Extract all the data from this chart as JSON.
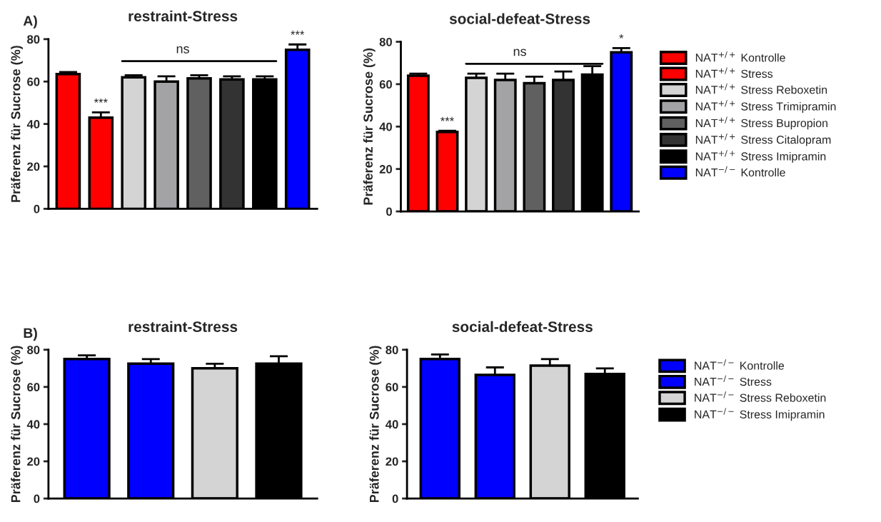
{
  "chart_data": [
    {
      "type": "bar",
      "title": "restraint-Stress",
      "ylabel": "Präferenz für Sucrose (%)",
      "annotations": [
        "A)",
        "ns"
      ],
      "categories": [
        null,
        null,
        null,
        null,
        null,
        null,
        null,
        null
      ],
      "values": [
        63.5,
        43,
        62,
        60,
        61.5,
        61,
        61,
        75
      ],
      "errors": [
        1,
        2.5,
        1,
        2.5,
        1.5,
        1.5,
        1.5,
        2.5
      ],
      "value_labels": [
        null,
        "***",
        null,
        null,
        null,
        null,
        null,
        "***"
      ],
      "colors": [
        "#ff0000",
        "#ff0000",
        "#d4d4d4",
        "#a3a3a6",
        "#606060",
        "#333333",
        "#000000",
        "#0000ff"
      ],
      "ylim": [
        0,
        80
      ],
      "yticks": [
        0,
        20,
        40,
        60,
        80
      ],
      "grid": false,
      "legend": false
    },
    {
      "type": "bar",
      "title": "social-defeat-Stress",
      "ylabel": "Präferenz für Sucrose (%)",
      "annotations": [
        "ns"
      ],
      "categories": [
        null,
        null,
        null,
        null,
        null,
        null,
        null,
        null
      ],
      "series": [
        {
          "name": "NAT$^{+/+}$ Kontrolle",
          "color": "#ff0000",
          "values": [
            64,
            null,
            null,
            null,
            null,
            null,
            null,
            null
          ],
          "errors": [
            1,
            null,
            null,
            null,
            null,
            null,
            null,
            null
          ]
        },
        {
          "name": "NAT$^{+/+}$ Stress",
          "color": "#ff0000",
          "values": [
            null,
            37.5,
            null,
            null,
            null,
            null,
            null,
            null
          ],
          "errors": [
            null,
            0.5,
            null,
            null,
            null,
            null,
            null,
            null
          ],
          "value_labels": [
            null,
            "***",
            null,
            null,
            null,
            null,
            null,
            null
          ]
        },
        {
          "name": "NAT$^{+/+}$ Stress Reboxetin",
          "color": "#d4d4d4",
          "values": [
            null,
            null,
            63,
            null,
            null,
            null,
            null,
            null
          ],
          "errors": [
            null,
            null,
            2,
            null,
            null,
            null,
            null,
            null
          ]
        },
        {
          "name": "NAT$^{+/+}$ Stress Trimipramin",
          "color": "#a3a3a6",
          "values": [
            null,
            null,
            null,
            62,
            null,
            null,
            null,
            null
          ],
          "errors": [
            null,
            null,
            null,
            3,
            null,
            null,
            null,
            null
          ]
        },
        {
          "name": "NAT$^{+/+}$ Stress Bupropion",
          "color": "#606060",
          "values": [
            null,
            null,
            null,
            null,
            60.5,
            null,
            null,
            null
          ],
          "errors": [
            null,
            null,
            null,
            null,
            3,
            null,
            null,
            null
          ]
        },
        {
          "name": "NAT$^{+/+}$ Stress Citalopram",
          "color": "#333333",
          "values": [
            null,
            null,
            null,
            null,
            null,
            62,
            null,
            null
          ],
          "errors": [
            null,
            null,
            null,
            null,
            null,
            4,
            null,
            null
          ]
        },
        {
          "name": "NAT$^{+/+}$ Stress Imipramin",
          "color": "#000000",
          "values": [
            null,
            null,
            null,
            null,
            null,
            null,
            64.5,
            null
          ],
          "errors": [
            null,
            null,
            null,
            null,
            null,
            null,
            4,
            null
          ]
        },
        {
          "name": "NAT$^{−/−}$ Kontrolle",
          "color": "#0000ff",
          "values": [
            null,
            null,
            null,
            null,
            null,
            null,
            null,
            75
          ],
          "errors": [
            null,
            null,
            null,
            null,
            null,
            null,
            null,
            2
          ],
          "value_labels": [
            null,
            null,
            null,
            null,
            null,
            null,
            null,
            "*"
          ]
        }
      ],
      "ylim": [
        0,
        80
      ],
      "yticks": [
        0,
        20,
        40,
        60,
        80
      ],
      "grid": false,
      "legend": "right"
    },
    {
      "type": "bar",
      "title": "restraint-Stress",
      "ylabel": "Präferenz für Sucrose (%)",
      "annotations": [
        "B)"
      ],
      "categories": [
        null,
        null,
        null,
        null
      ],
      "values": [
        75,
        72.5,
        70,
        72.5
      ],
      "errors": [
        2,
        2.5,
        2.5,
        4
      ],
      "colors": [
        "#0000ff",
        "#0000ff",
        "#d4d4d4",
        "#000000"
      ],
      "ylim": [
        0,
        80
      ],
      "yticks": [
        0,
        20,
        40,
        60,
        80
      ],
      "grid": false,
      "legend": false
    },
    {
      "type": "bar",
      "title": "social-defeat-Stress",
      "ylabel": "Präferenz für Sucrose (%)",
      "categories": [
        null,
        null,
        null,
        null
      ],
      "series": [
        {
          "name": "NAT$^{−/−}$ Kontrolle",
          "color": "#0000ff",
          "values": [
            75,
            null,
            null,
            null
          ],
          "errors": [
            2.5,
            null,
            null,
            null
          ]
        },
        {
          "name": "NAT$^{−/−}$ Stress",
          "color": "#0000ff",
          "values": [
            null,
            66.5,
            null,
            null
          ],
          "errors": [
            null,
            4,
            null,
            null
          ]
        },
        {
          "name": "NAT$^{−/−}$ Stress Reboxetin",
          "color": "#d4d4d4",
          "values": [
            null,
            null,
            71.5,
            null
          ],
          "errors": [
            null,
            null,
            3.5,
            null
          ]
        },
        {
          "name": "NAT$^{−/−}$ Stress Imipramin",
          "color": "#000000",
          "values": [
            null,
            null,
            null,
            67
          ],
          "errors": [
            null,
            null,
            null,
            3
          ]
        }
      ],
      "ylim": [
        0,
        80
      ],
      "yticks": [
        0,
        20,
        40,
        60,
        80
      ],
      "grid": false,
      "legend": "right"
    }
  ]
}
